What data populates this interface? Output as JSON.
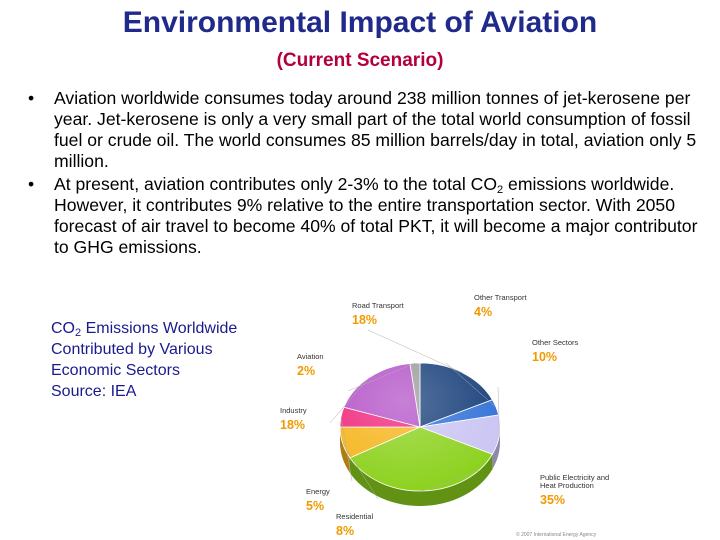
{
  "title": "Environmental Impact of Aviation",
  "subtitle": "(Current Scenario)",
  "bullets": [
    {
      "text": "Aviation worldwide consumes today around 238 million tonnes of jet-kerosene per year. Jet-kerosene is only a very small part of the total world consumption of fossil fuel or crude oil. The world consumes 85 million barrels/day in total, aviation only 5 million."
    },
    {
      "text_a": "At present, aviation contributes only 2-3% to the total CO",
      "sub": "2",
      "text_b": " emissions worldwide. However, it contributes 9% relative to the entire transportation sector. With 2050 forecast of air travel to become 40% of total PKT, it will become a major contributor to GHG emissions."
    }
  ],
  "bullet_symbol": "•",
  "caption": {
    "co2": "CO",
    "co2_sub": "2",
    "line1_rest": " Emissions Worldwide",
    "line2": "Contributed by Various",
    "line3": "Economic Sectors",
    "line4": "Source: IEA"
  },
  "chart_data": {
    "type": "pie",
    "title": "CO2 Emissions Worldwide Contributed by Various Economic Sectors",
    "source": "Source: IEA",
    "slices": [
      {
        "name": "Road Transport",
        "value": 18,
        "label": "18%",
        "color": "#143c78"
      },
      {
        "name": "Other Transport",
        "value": 4,
        "label": "4%",
        "color": "#2e6fd6"
      },
      {
        "name": "Other Sectors",
        "value": 10,
        "label": "10%",
        "color": "#c9c4f2"
      },
      {
        "name": "Public Electricity and Heat Production",
        "value": 35,
        "label": "35%",
        "color": "#8bd11b"
      },
      {
        "name": "Residential",
        "value": 8,
        "label": "8%",
        "color": "#f5b41a"
      },
      {
        "name": "Energy",
        "value": 5,
        "label": "5%",
        "color": "#f0257a"
      },
      {
        "name": "Industry",
        "value": 18,
        "label": "18%",
        "color": "#b24fc7"
      },
      {
        "name": "Aviation",
        "value": 2,
        "label": "2%",
        "color": "#9a9a9a"
      }
    ],
    "copyright": "© 2007 International Energy Agency"
  }
}
